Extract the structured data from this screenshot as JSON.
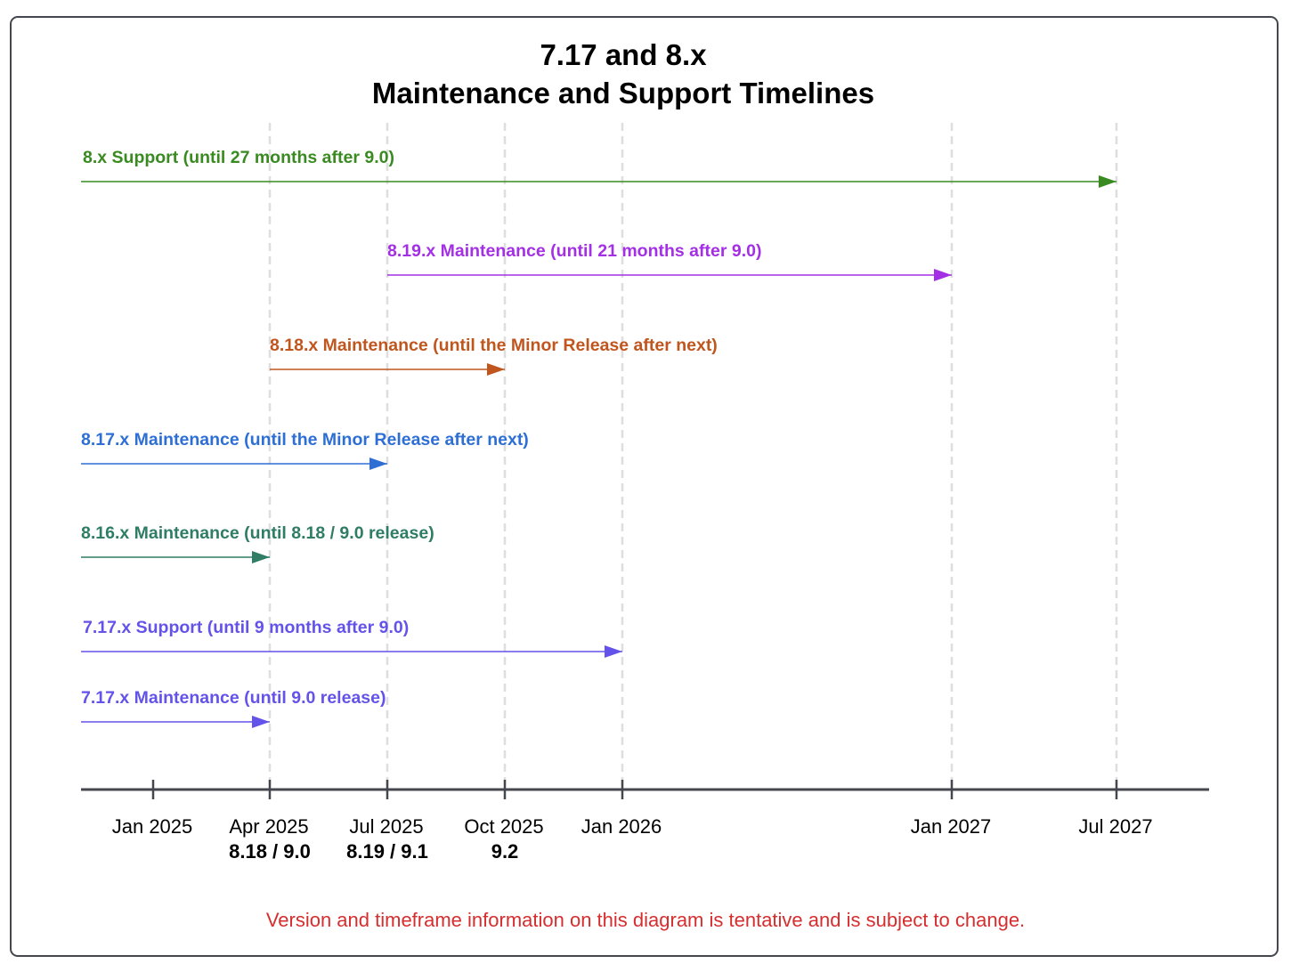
{
  "title": {
    "line1": "7.17 and 8.x",
    "line2": "Maintenance and Support Timelines"
  },
  "timeline": {
    "ticks": [
      {
        "date": "2025-01-01",
        "label": "Jan 2025",
        "release": "",
        "gridline": false
      },
      {
        "date": "2025-04-01",
        "label": "Apr 2025",
        "release": "8.18 / 9.0",
        "gridline": true
      },
      {
        "date": "2025-07-01",
        "label": "Jul 2025",
        "release": "8.19 / 9.1",
        "gridline": true
      },
      {
        "date": "2025-10-01",
        "label": "Oct 2025",
        "release": "9.2",
        "gridline": true
      },
      {
        "date": "2026-01-01",
        "label": "Jan 2026",
        "release": "",
        "gridline": true
      },
      {
        "date": "2027-01-01",
        "label": "Jan 2027",
        "release": "",
        "gridline": true
      },
      {
        "date": "2027-07-01",
        "label": "Jul 2027",
        "release": "",
        "gridline": true
      }
    ],
    "bars": [
      {
        "label": "8.x Support (until 27 months after 9.0)",
        "color": "#3a8a22",
        "start": "before Jan 2025",
        "end": "2027-07-01"
      },
      {
        "label": "8.19.x Maintenance (until 21 months after 9.0)",
        "color": "#a430e6",
        "start": "2025-07-01",
        "end": "2027-01-01"
      },
      {
        "label": "8.18.x Maintenance (until the Minor Release after next)",
        "color": "#c0561e",
        "start": "2025-04-01",
        "end": "2025-10-01"
      },
      {
        "label": "8.17.x Maintenance (until the Minor Release after next)",
        "color": "#2e6fd6",
        "start": "before Jan 2025",
        "end": "2025-07-01"
      },
      {
        "label": "8.16.x Maintenance (until 8.18 / 9.0 release)",
        "color": "#2e7d64",
        "start": "before Jan 2025",
        "end": "2025-04-01"
      },
      {
        "label": "7.17.x Support (until 9 months after 9.0)",
        "color": "#6453ea",
        "start": "before Jan 2025",
        "end": "2026-01-01"
      },
      {
        "label": "7.17.x Maintenance (until 9.0 release)",
        "color": "#6453ea",
        "start": "before Jan 2025",
        "end": "2025-04-01"
      }
    ]
  },
  "footnote": "Version and timeframe information on this diagram is tentative and is subject to change.",
  "colors": {
    "axis": "#45474f",
    "gridline": "#dedede",
    "footnote": "#d62e2e",
    "frame": "#45474f"
  }
}
